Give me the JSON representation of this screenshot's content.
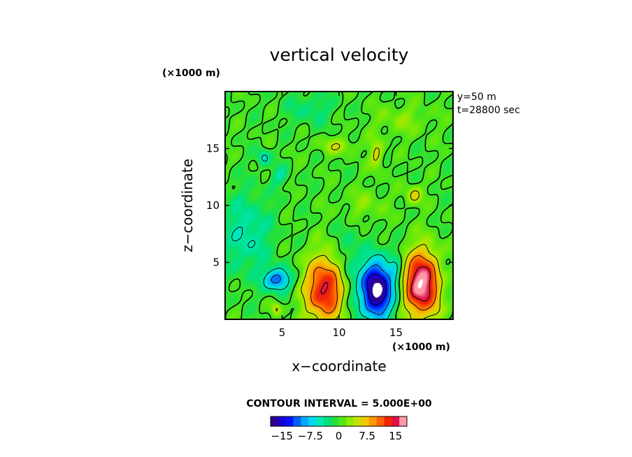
{
  "chart_data": {
    "type": "heatmap",
    "title": "vertical velocity",
    "xlabel": "x−coordinate",
    "ylabel": "z−coordinate",
    "x_unit": "(×1000 m)",
    "y_unit": "(×1000 m)",
    "xlim": [
      0,
      20
    ],
    "ylim": [
      0,
      20
    ],
    "x_ticks": [
      5,
      10,
      15
    ],
    "y_ticks": [
      5,
      10,
      15
    ],
    "x_tick_labels": [
      "5",
      "10",
      "15"
    ],
    "y_tick_labels": [
      "5",
      "10",
      "15"
    ],
    "annotations": [
      "y=50  m",
      "t=28800 sec"
    ],
    "contour_interval_text": "CONTOUR INTERVAL = 5.000E+00",
    "colorbar": {
      "min": -18,
      "max": 18,
      "tick_values": [
        -15,
        -7.5,
        0,
        7.5,
        15
      ],
      "tick_labels": [
        "−15",
        "−7.5",
        "0",
        "7.5",
        "15"
      ],
      "colors": [
        "#2a008f",
        "#1800d4",
        "#0012ff",
        "#0060ff",
        "#00a6ff",
        "#00d8ee",
        "#00e8b4",
        "#00e080",
        "#26e03a",
        "#55e612",
        "#90ec00",
        "#c8e000",
        "#f2c800",
        "#ff9900",
        "#ff6200",
        "#f02800",
        "#e0104a",
        "#ff99a8"
      ]
    },
    "features": [
      {
        "kind": "updraft",
        "x": 8.8,
        "z": 2.6,
        "peak": 16
      },
      {
        "kind": "updraft",
        "x": 17.3,
        "z": 3.1,
        "peak": 20
      },
      {
        "kind": "downdraft",
        "x": 13.3,
        "z": 2.6,
        "peak": -22
      },
      {
        "kind": "downdraft",
        "x": 4.6,
        "z": 3.5,
        "peak": -12
      },
      {
        "kind": "updraft",
        "x": 16.6,
        "z": 10.9,
        "peak": 6
      },
      {
        "kind": "updraft",
        "x": 13.3,
        "z": 14.4,
        "peak": 6
      }
    ]
  }
}
